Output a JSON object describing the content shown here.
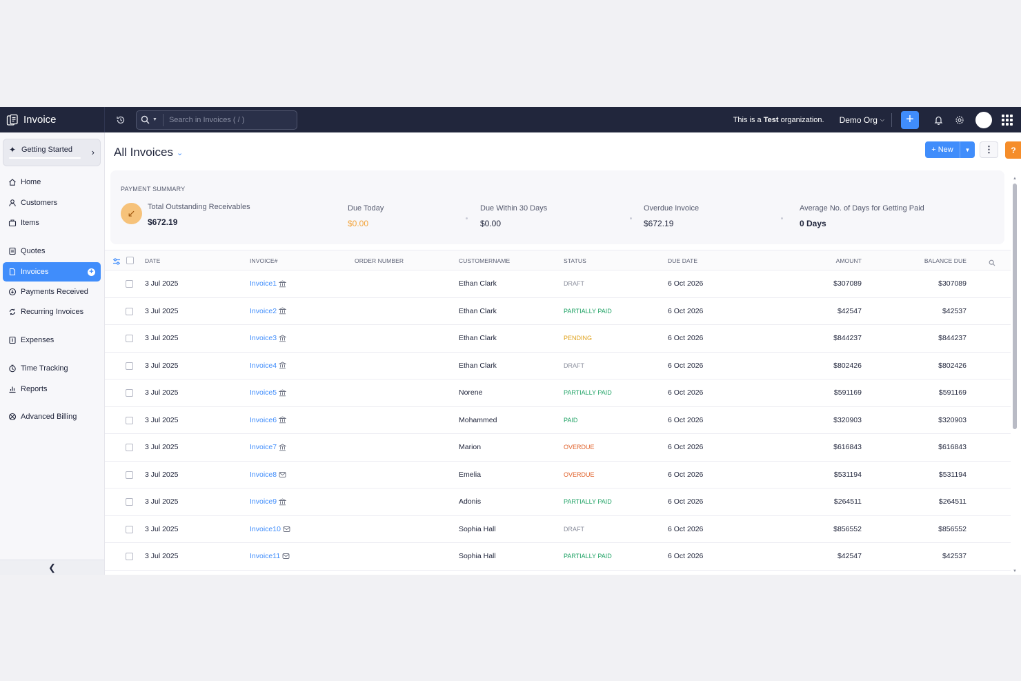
{
  "app": {
    "title": "Invoice"
  },
  "search": {
    "placeholder": "Search in Invoices ( / )"
  },
  "topbar": {
    "org_note_prefix": "This is a ",
    "org_note_bold": "Test",
    "org_note_suffix": " organization.",
    "org_name": "Demo Org"
  },
  "sidebar": {
    "getting_started": "Getting Started",
    "items": [
      {
        "label": "Home",
        "icon": "home-icon"
      },
      {
        "label": "Customers",
        "icon": "user-icon"
      },
      {
        "label": "Items",
        "icon": "box-icon"
      },
      {
        "label": "Quotes",
        "icon": "quote-icon"
      },
      {
        "label": "Invoices",
        "icon": "invoice-icon",
        "active": true
      },
      {
        "label": "Payments Received",
        "icon": "payment-icon"
      },
      {
        "label": "Recurring Invoices",
        "icon": "recurring-icon"
      },
      {
        "label": "Expenses",
        "icon": "expense-icon"
      },
      {
        "label": "Time Tracking",
        "icon": "clock-icon"
      },
      {
        "label": "Reports",
        "icon": "chart-icon"
      },
      {
        "label": "Advanced Billing",
        "icon": "billing-icon"
      }
    ]
  },
  "main": {
    "title": "All Invoices",
    "new_label": "+ New",
    "help_label": "?"
  },
  "summary": {
    "title": "PAYMENT SUMMARY",
    "total_label": "Total Outstanding Receivables",
    "total_value": "$672.19",
    "due_today_label": "Due Today",
    "due_today_value": "$0.00",
    "due_30_label": "Due Within 30 Days",
    "due_30_value": "$0.00",
    "overdue_label": "Overdue Invoice",
    "overdue_value": "$672.19",
    "avg_label": "Average No. of Days for Getting Paid",
    "avg_value": "0 Days"
  },
  "table": {
    "headers": {
      "date": "DATE",
      "invoice": "INVOICE#",
      "order": "ORDER NUMBER",
      "customer": "CUSTOMERNAME",
      "status": "STATUS",
      "due": "DUE DATE",
      "amount": "AMOUNT",
      "balance": "BALANCE DUE"
    },
    "rows": [
      {
        "date": "3 Jul 2025",
        "invoice": "Invoice1",
        "icon": "bank-icon",
        "customer": "Ethan Clark",
        "status": "DRAFT",
        "status_kind": "draft",
        "due": "6 Oct 2026",
        "amount": "$307089",
        "balance": "$307089"
      },
      {
        "date": "3 Jul 2025",
        "invoice": "Invoice2",
        "icon": "bank-icon",
        "customer": "Ethan Clark",
        "status": "PARTIALLY PAID",
        "status_kind": "green",
        "due": "6 Oct 2026",
        "amount": "$42547",
        "balance": "$42537"
      },
      {
        "date": "3 Jul 2025",
        "invoice": "Invoice3",
        "icon": "bank-icon",
        "customer": "Ethan Clark",
        "status": "PENDING",
        "status_kind": "orange",
        "due": "6 Oct 2026",
        "amount": "$844237",
        "balance": "$844237"
      },
      {
        "date": "3 Jul 2025",
        "invoice": "Invoice4",
        "icon": "bank-icon",
        "customer": "Ethan Clark",
        "status": "DRAFT",
        "status_kind": "draft",
        "due": "6 Oct 2026",
        "amount": "$802426",
        "balance": "$802426"
      },
      {
        "date": "3 Jul 2025",
        "invoice": "Invoice5",
        "icon": "bank-icon",
        "customer": "Norene",
        "status": "PARTIALLY PAID",
        "status_kind": "green",
        "due": "6 Oct 2026",
        "amount": "$591169",
        "balance": "$591169"
      },
      {
        "date": "3 Jul 2025",
        "invoice": "Invoice6",
        "icon": "bank-icon",
        "customer": "Mohammed",
        "status": "PAID",
        "status_kind": "green",
        "due": "6 Oct 2026",
        "amount": "$320903",
        "balance": "$320903"
      },
      {
        "date": "3 Jul 2025",
        "invoice": "Invoice7",
        "icon": "bank-icon",
        "customer": "Marion",
        "status": "OVERDUE",
        "status_kind": "red",
        "due": "6 Oct 2026",
        "amount": "$616843",
        "balance": "$616843"
      },
      {
        "date": "3 Jul 2025",
        "invoice": "Invoice8",
        "icon": "mail-icon",
        "customer": "Emelia",
        "status": "OVERDUE",
        "status_kind": "red",
        "due": "6 Oct 2026",
        "amount": "$531194",
        "balance": "$531194"
      },
      {
        "date": "3 Jul 2025",
        "invoice": "Invoice9",
        "icon": "bank-icon",
        "customer": "Adonis",
        "status": "PARTIALLY PAID",
        "status_kind": "green",
        "due": "6 Oct 2026",
        "amount": "$264511",
        "balance": "$264511"
      },
      {
        "date": "3 Jul 2025",
        "invoice": "Invoice10",
        "icon": "mail-icon",
        "customer": "Sophia Hall",
        "status": "DRAFT",
        "status_kind": "draft",
        "due": "6 Oct 2026",
        "amount": "$856552",
        "balance": "$856552"
      },
      {
        "date": "3 Jul 2025",
        "invoice": "Invoice11",
        "icon": "mail-icon",
        "customer": "Sophia Hall",
        "status": "PARTIALLY PAID",
        "status_kind": "green",
        "due": "6 Oct 2026",
        "amount": "$42547",
        "balance": "$42537"
      }
    ]
  },
  "colors": {
    "accent": "#408dfb",
    "topbar": "#21263c",
    "help": "#f58d2a"
  }
}
